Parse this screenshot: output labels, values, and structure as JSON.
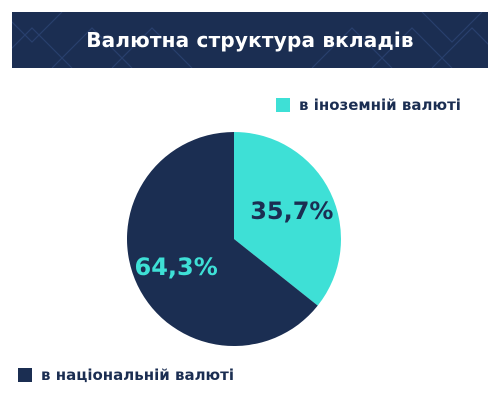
{
  "header": {
    "title": "Валютна структура вкладів"
  },
  "colors": {
    "header_bg": "#1b2e52",
    "foreign": "#3ee0d6",
    "national": "#1b2e52"
  },
  "chart_data": {
    "type": "pie",
    "title": "Валютна структура вкладів",
    "series": [
      {
        "name": "в іноземній валюті",
        "value": 35.7,
        "label": "35,7%",
        "color": "#3ee0d6",
        "label_color": "#1b2e52"
      },
      {
        "name": "в національній валюті",
        "value": 64.3,
        "label": "64,3%",
        "color": "#1b2e52",
        "label_color": "#3ee0d6"
      }
    ],
    "legend": "split"
  },
  "legend": {
    "foreign": "в іноземній валюті",
    "national": "в національній валюті"
  }
}
